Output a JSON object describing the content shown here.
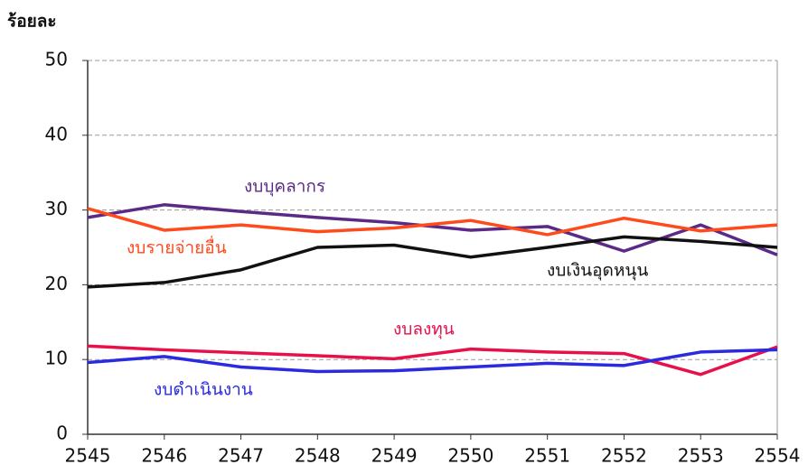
{
  "chart_data": {
    "type": "line",
    "y_label": "ร้อยละ",
    "categories": [
      "2545",
      "2546",
      "2547",
      "2548",
      "2549",
      "2550",
      "2551",
      "2552",
      "2553",
      "2554"
    ],
    "ylim": [
      0,
      50
    ],
    "yticks": [
      0,
      10,
      20,
      30,
      40,
      50
    ],
    "grid": true,
    "series": [
      {
        "name": "งบบุคลากร",
        "color": "#5b2a86",
        "values": [
          29,
          30.7,
          29.8,
          29,
          28.3,
          27.3,
          27.8,
          24.5,
          28,
          24
        ]
      },
      {
        "name": "งบรายจ่ายอื่น",
        "color": "#ff4a1c",
        "values": [
          30.2,
          27.3,
          28,
          27.1,
          27.6,
          28.6,
          26.7,
          28.9,
          27.2,
          28
        ]
      },
      {
        "name": "งบเงินอุดหนุน",
        "color": "#111111",
        "values": [
          19.7,
          20.3,
          22,
          25,
          25.3,
          23.7,
          25,
          26.4,
          25.8,
          25
        ]
      },
      {
        "name": "งบลงทุน",
        "color": "#e8104a",
        "values": [
          11.8,
          11.3,
          10.9,
          10.5,
          10.1,
          11.4,
          11,
          10.8,
          8,
          11.7
        ]
      },
      {
        "name": "งบดำเนินงาน",
        "color": "#2a2ae0",
        "values": [
          9.6,
          10.4,
          9,
          8.4,
          8.5,
          9,
          9.5,
          9.2,
          11,
          11.3
        ]
      }
    ]
  }
}
